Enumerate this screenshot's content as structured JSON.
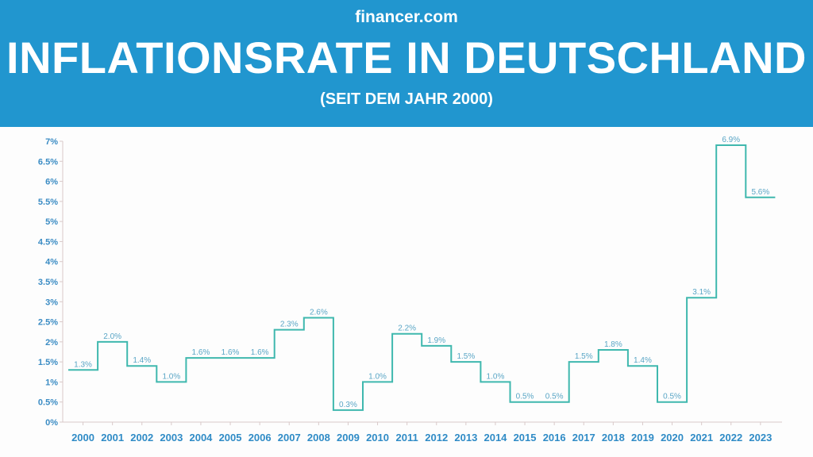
{
  "header": {
    "brand": "financer.com",
    "title": "INFLATIONSRATE IN DEUTSCHLAND",
    "subtitle": "(SEIT DEM JAHR 2000)"
  },
  "colors": {
    "header": "#2196cf",
    "line": "#3fb8ae",
    "axis": "#d9c9c9"
  },
  "chart_data": {
    "type": "line",
    "style": "step",
    "title": "INFLATIONSRATE IN DEUTSCHLAND",
    "subtitle": "(SEIT DEM JAHR 2000)",
    "xlabel": "",
    "ylabel": "",
    "ylim": [
      0,
      7
    ],
    "yticks": [
      "0%",
      "0.5%",
      "1%",
      "1.5%",
      "2%",
      "2.5%",
      "3%",
      "3.5%",
      "4%",
      "4.5%",
      "5%",
      "5.5%",
      "6%",
      "6.5%",
      "7%"
    ],
    "categories": [
      "2000",
      "2001",
      "2002",
      "2003",
      "2004",
      "2005",
      "2006",
      "2007",
      "2008",
      "2009",
      "2010",
      "2011",
      "2012",
      "2013",
      "2014",
      "2015",
      "2016",
      "2017",
      "2018",
      "2019",
      "2020",
      "2021",
      "2022",
      "2023"
    ],
    "values": [
      1.3,
      2.0,
      1.4,
      1.0,
      1.6,
      1.6,
      1.6,
      2.3,
      2.6,
      0.3,
      1.0,
      2.2,
      1.9,
      1.5,
      1.0,
      0.5,
      0.5,
      1.5,
      1.8,
      1.4,
      0.5,
      3.1,
      6.9,
      5.6
    ],
    "data_labels": [
      "1.3%",
      "2.0%",
      "1.4%",
      "1.0%",
      "1.6%",
      "1.6%",
      "1.6%",
      "2.3%",
      "2.6%",
      "0.3%",
      "1.0%",
      "2.2%",
      "1.9%",
      "1.5%",
      "1.0%",
      "0.5%",
      "0.5%",
      "1.5%",
      "1.8%",
      "1.4%",
      "0.5%",
      "3.1%",
      "6.9%",
      "5.6%"
    ],
    "grid": false,
    "legend": "none"
  }
}
